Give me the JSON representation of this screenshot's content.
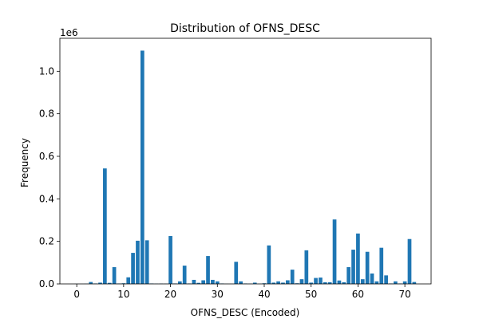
{
  "chart_data": {
    "type": "bar",
    "title": "Distribution of OFNS_DESC",
    "xlabel": "OFNS_DESC (Encoded)",
    "ylabel": "Frequency",
    "y_offset_label": "1e6",
    "xlim": [
      -3.6,
      75.6
    ],
    "ylim": [
      0,
      1.155
    ],
    "x_ticks": [
      0,
      10,
      20,
      30,
      40,
      50,
      60,
      70
    ],
    "y_ticks": [
      0.0,
      0.2,
      0.4,
      0.6,
      0.8,
      1.0
    ],
    "bar_color": "#1f77b4",
    "x": [
      0,
      1,
      2,
      3,
      4,
      5,
      6,
      7,
      8,
      9,
      10,
      11,
      12,
      13,
      14,
      15,
      16,
      17,
      18,
      19,
      20,
      21,
      22,
      23,
      24,
      25,
      26,
      27,
      28,
      29,
      30,
      31,
      32,
      33,
      34,
      35,
      36,
      37,
      38,
      39,
      40,
      41,
      42,
      43,
      44,
      45,
      46,
      47,
      48,
      49,
      50,
      51,
      52,
      53,
      54,
      55,
      56,
      57,
      58,
      59,
      60,
      61,
      62,
      63,
      64,
      65,
      66,
      67,
      68,
      69,
      70,
      71,
      72
    ],
    "values": [
      0.0005,
      0.0003,
      0.0008,
      0.009,
      0.002,
      0.006,
      0.543,
      0.005,
      0.079,
      0.002,
      0.003,
      0.031,
      0.146,
      0.203,
      1.097,
      0.205,
      0.002,
      0.001,
      0.0015,
      0.001,
      0.225,
      0.002,
      0.012,
      0.086,
      0.002,
      0.019,
      0.005,
      0.017,
      0.131,
      0.019,
      0.012,
      0.002,
      0.0005,
      0.0005,
      0.104,
      0.012,
      0.002,
      0.001,
      0.006,
      0.0005,
      0.003,
      0.181,
      0.006,
      0.012,
      0.006,
      0.017,
      0.067,
      0.003,
      0.022,
      0.158,
      0.006,
      0.028,
      0.03,
      0.008,
      0.008,
      0.303,
      0.016,
      0.008,
      0.079,
      0.161,
      0.237,
      0.022,
      0.151,
      0.049,
      0.012,
      0.17,
      0.04,
      0.002,
      0.012,
      0.002,
      0.012,
      0.211,
      0.009
    ]
  }
}
